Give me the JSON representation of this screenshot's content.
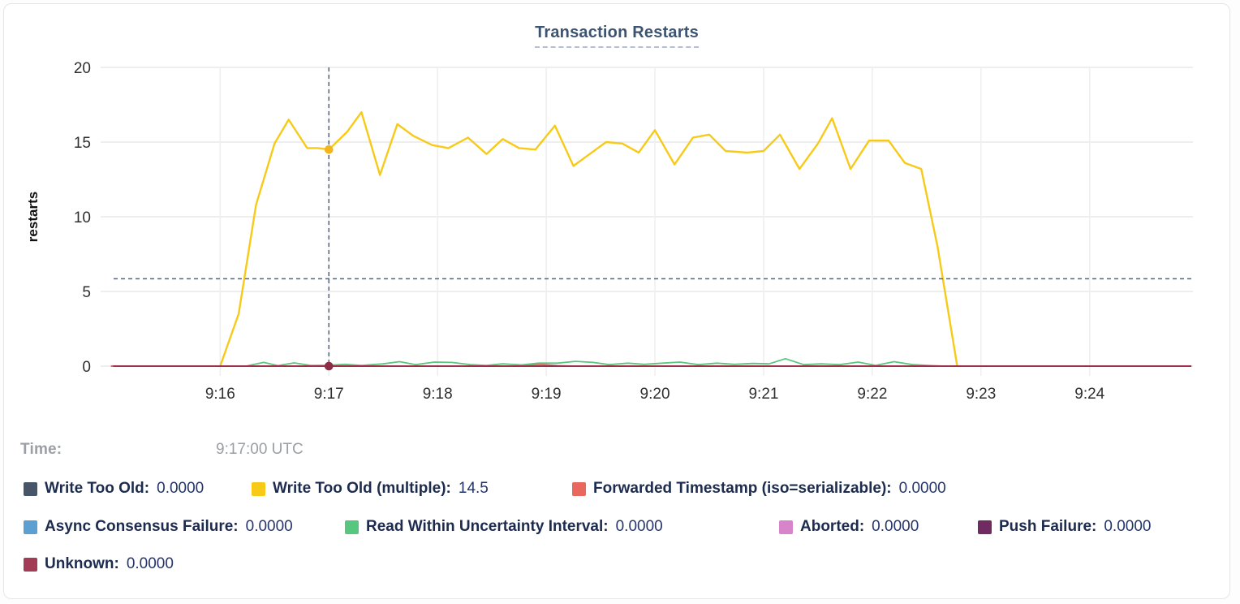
{
  "card": {
    "title": "Transaction Restarts"
  },
  "tooltip": {
    "time_label": "Time:",
    "time_value": "9:17:00 UTC"
  },
  "legend": {
    "rows": [
      [
        {
          "label": "Write Too Old:",
          "value": "0.0000",
          "color": "#475568"
        },
        {
          "label": "Write Too Old (multiple):",
          "value": "14.5",
          "color": "#f7ca18"
        },
        {
          "label": "Forwarded Timestamp (iso=serializable):",
          "value": "0.0000",
          "color": "#e8685d"
        }
      ],
      [
        {
          "label": "Async Consensus Failure:",
          "value": "0.0000",
          "color": "#5b9fd3"
        },
        {
          "label": "Read Within Uncertainty Interval:",
          "value": "0.0000",
          "color": "#57c77f"
        },
        {
          "label": "Aborted:",
          "value": "0.0000",
          "color": "#d784ca"
        },
        {
          "label": "Push Failure:",
          "value": "0.0000",
          "color": "#6f2b62"
        }
      ],
      [
        {
          "label": "Unknown:",
          "value": "0.0000",
          "color": "#a23b55"
        }
      ]
    ]
  },
  "chart_data": {
    "type": "line",
    "title": "Transaction Restarts",
    "xlabel": "",
    "ylabel": "restarts",
    "ylim": [
      0,
      20
    ],
    "y_ticks": [
      0,
      5,
      10,
      15,
      20
    ],
    "xlim": [
      14.9,
      24.95
    ],
    "x_ticks": [
      {
        "t": 16,
        "label": "9:16"
      },
      {
        "t": 17,
        "label": "9:17"
      },
      {
        "t": 18,
        "label": "9:18"
      },
      {
        "t": 19,
        "label": "9:19"
      },
      {
        "t": 20,
        "label": "9:20"
      },
      {
        "t": 21,
        "label": "9:21"
      },
      {
        "t": 22,
        "label": "9:22"
      },
      {
        "t": 23,
        "label": "9:23"
      },
      {
        "t": 24,
        "label": "9:24"
      }
    ],
    "grid": true,
    "legend_position": "bottom",
    "hover": {
      "t": 17,
      "cursor_y_value": 5.85,
      "crosshair_color": "#4a6585",
      "points": [
        {
          "series": "Write Too Old (multiple)",
          "v": 14.5,
          "dot_color": "#f2b51c"
        },
        {
          "series": "Unknown",
          "v": 0,
          "dot_color": "#8e2c44"
        }
      ]
    },
    "series": [
      {
        "name": "Write Too Old",
        "color": "#475568",
        "width": 1.6,
        "points": [
          [
            15.0,
            0
          ],
          [
            24.93,
            0
          ]
        ]
      },
      {
        "name": "Async Consensus Failure",
        "color": "#5b9fd3",
        "width": 1.6,
        "points": [
          [
            15.0,
            0
          ],
          [
            24.93,
            0
          ]
        ]
      },
      {
        "name": "Aborted",
        "color": "#d784ca",
        "width": 1.6,
        "points": [
          [
            15.0,
            0
          ],
          [
            24.93,
            0
          ]
        ]
      },
      {
        "name": "Push Failure",
        "color": "#6f2b62",
        "width": 1.6,
        "points": [
          [
            15.0,
            0
          ],
          [
            24.93,
            0
          ]
        ]
      },
      {
        "name": "Forwarded Timestamp (iso=serializable)",
        "color": "#e8685d",
        "width": 1.8,
        "points": [
          [
            15.0,
            0
          ],
          [
            18.7,
            0
          ],
          [
            18.82,
            0.1
          ],
          [
            18.95,
            0.12
          ],
          [
            19.1,
            0.03
          ],
          [
            19.25,
            0
          ],
          [
            24.93,
            0
          ]
        ]
      },
      {
        "name": "Read Within Uncertainty Interval",
        "color": "#57c77f",
        "width": 1.8,
        "points": [
          [
            16.25,
            0.02
          ],
          [
            16.4,
            0.25
          ],
          [
            16.53,
            0.03
          ],
          [
            16.68,
            0.22
          ],
          [
            16.83,
            0.05
          ],
          [
            17.0,
            0.06
          ],
          [
            17.15,
            0.12
          ],
          [
            17.3,
            0.05
          ],
          [
            17.5,
            0.15
          ],
          [
            17.65,
            0.3
          ],
          [
            17.8,
            0.1
          ],
          [
            17.97,
            0.27
          ],
          [
            18.13,
            0.25
          ],
          [
            18.3,
            0.1
          ],
          [
            18.45,
            0.05
          ],
          [
            18.6,
            0.15
          ],
          [
            18.77,
            0.08
          ],
          [
            18.93,
            0.2
          ],
          [
            19.1,
            0.2
          ],
          [
            19.27,
            0.32
          ],
          [
            19.43,
            0.25
          ],
          [
            19.58,
            0.1
          ],
          [
            19.75,
            0.2
          ],
          [
            19.9,
            0.12
          ],
          [
            20.07,
            0.2
          ],
          [
            20.23,
            0.27
          ],
          [
            20.4,
            0.1
          ],
          [
            20.57,
            0.2
          ],
          [
            20.73,
            0.12
          ],
          [
            20.9,
            0.18
          ],
          [
            21.05,
            0.15
          ],
          [
            21.2,
            0.5
          ],
          [
            21.37,
            0.1
          ],
          [
            21.53,
            0.15
          ],
          [
            21.7,
            0.1
          ],
          [
            21.87,
            0.27
          ],
          [
            22.03,
            0.05
          ],
          [
            22.2,
            0.3
          ],
          [
            22.37,
            0.1
          ],
          [
            22.55,
            0.03
          ],
          [
            22.67,
            0
          ]
        ]
      },
      {
        "name": "Write Too Old (multiple)",
        "color": "#f7ca18",
        "width": 2.4,
        "points": [
          [
            16.0,
            0
          ],
          [
            16.17,
            3.5
          ],
          [
            16.33,
            10.8
          ],
          [
            16.5,
            14.9
          ],
          [
            16.63,
            16.5
          ],
          [
            16.8,
            14.6
          ],
          [
            16.9,
            14.6
          ],
          [
            17.0,
            14.5
          ],
          [
            17.17,
            15.7
          ],
          [
            17.3,
            17.0
          ],
          [
            17.47,
            12.8
          ],
          [
            17.63,
            16.2
          ],
          [
            17.78,
            15.4
          ],
          [
            17.95,
            14.8
          ],
          [
            18.1,
            14.6
          ],
          [
            18.28,
            15.3
          ],
          [
            18.45,
            14.2
          ],
          [
            18.6,
            15.2
          ],
          [
            18.75,
            14.6
          ],
          [
            18.9,
            14.5
          ],
          [
            19.08,
            16.1
          ],
          [
            19.25,
            13.4
          ],
          [
            19.4,
            14.2
          ],
          [
            19.55,
            15.0
          ],
          [
            19.7,
            14.9
          ],
          [
            19.85,
            14.3
          ],
          [
            20.0,
            15.8
          ],
          [
            20.18,
            13.5
          ],
          [
            20.35,
            15.3
          ],
          [
            20.5,
            15.5
          ],
          [
            20.65,
            14.4
          ],
          [
            20.85,
            14.3
          ],
          [
            21.0,
            14.4
          ],
          [
            21.15,
            15.5
          ],
          [
            21.33,
            13.2
          ],
          [
            21.5,
            14.9
          ],
          [
            21.63,
            16.6
          ],
          [
            21.8,
            13.2
          ],
          [
            21.97,
            15.1
          ],
          [
            22.15,
            15.1
          ],
          [
            22.3,
            13.6
          ],
          [
            22.45,
            13.2
          ],
          [
            22.6,
            8.0
          ],
          [
            22.78,
            0.05
          ]
        ]
      },
      {
        "name": "Unknown",
        "color": "#9e3048",
        "width": 2,
        "points": [
          [
            15.02,
            0
          ],
          [
            24.93,
            0
          ]
        ]
      }
    ]
  }
}
